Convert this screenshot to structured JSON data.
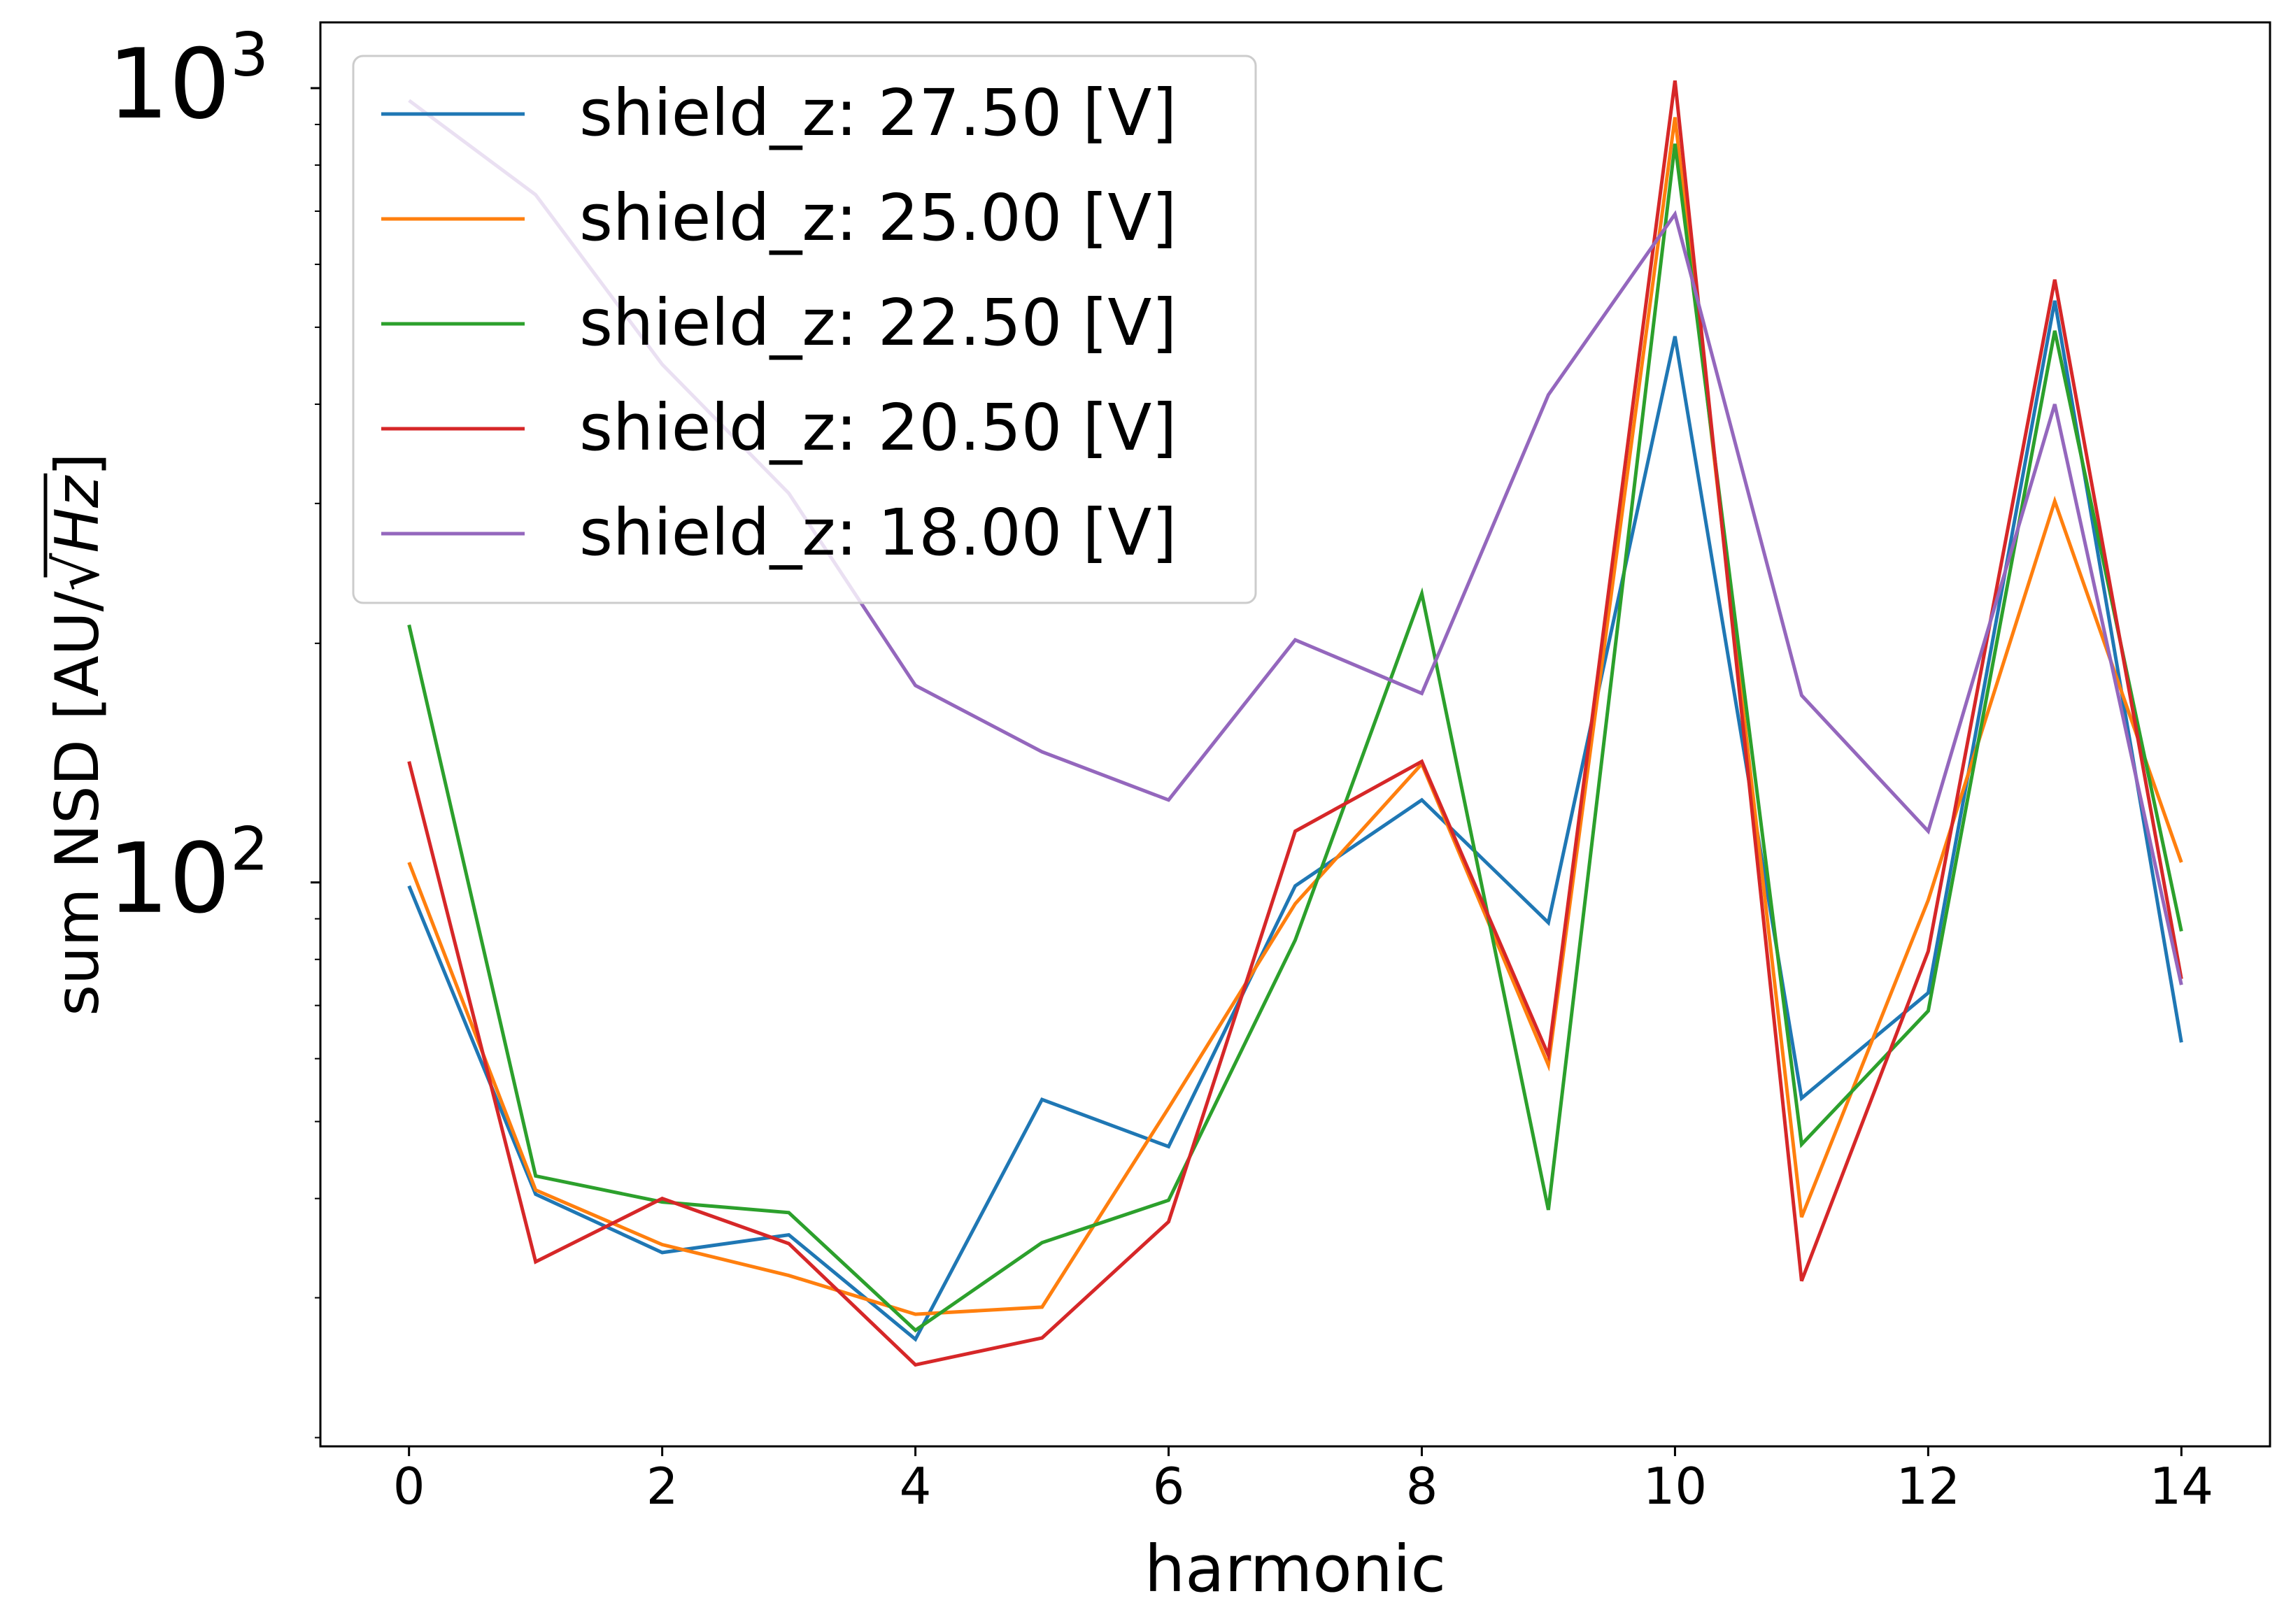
{
  "chart_data": {
    "type": "line",
    "title": "",
    "xlabel": "harmonic",
    "ylabel": "sum NSD [AU/√Hz]",
    "ylabel_prefix": "sum NSD [AU/",
    "ylabel_radical": "Hz",
    "ylabel_suffix": "]",
    "xscale": "linear",
    "yscale": "log",
    "xlim": [
      -0.7,
      14.7
    ],
    "ylim": [
      19.5,
      1210
    ],
    "x_ticks": [
      0,
      2,
      4,
      6,
      8,
      10,
      12,
      14
    ],
    "x_tick_labels": [
      "0",
      "2",
      "4",
      "6",
      "8",
      "10",
      "12",
      "14"
    ],
    "y_ticks": [
      100,
      1000
    ],
    "y_tick_base": "10",
    "y_tick_exponents": [
      "2",
      "3"
    ],
    "grid": false,
    "legend_position": "top-left",
    "x": [
      0,
      1,
      2,
      3,
      4,
      5,
      6,
      7,
      8,
      9,
      10,
      11,
      12,
      13,
      14
    ],
    "series": [
      {
        "name": "shield_z: 27.50 [V]",
        "color": "#1f77b4",
        "values": [
          99,
          40.5,
          34.2,
          36.0,
          26.6,
          53.3,
          46.5,
          99,
          127,
          89,
          487,
          53.5,
          72.6,
          540,
          62.9
        ]
      },
      {
        "name": "shield_z: 25.00 [V]",
        "color": "#ff7f0e",
        "values": [
          106,
          41.0,
          35.0,
          32.0,
          28.6,
          29.2,
          52.0,
          94,
          141,
          58.9,
          919,
          37.9,
          95,
          302,
          106
        ]
      },
      {
        "name": "shield_z: 22.50 [V]",
        "color": "#2ca02c",
        "values": [
          211,
          42.7,
          39.6,
          38.4,
          27.3,
          35.2,
          39.8,
          84.6,
          231,
          38.7,
          851,
          46.8,
          68.9,
          495,
          86.8
        ]
      },
      {
        "name": "shield_z: 20.50 [V]",
        "color": "#d62728",
        "values": [
          142,
          33.3,
          40.0,
          35.1,
          24.7,
          26.7,
          37.4,
          116,
          142,
          60.6,
          1022,
          31.5,
          81.9,
          574,
          75.6
        ]
      },
      {
        "name": "shield_z: 18.00 [V]",
        "color": "#9467bd",
        "values": [
          965,
          734,
          449,
          309,
          177,
          146,
          127,
          202,
          173,
          411,
          694,
          172,
          116,
          400,
          74.3
        ]
      }
    ]
  }
}
